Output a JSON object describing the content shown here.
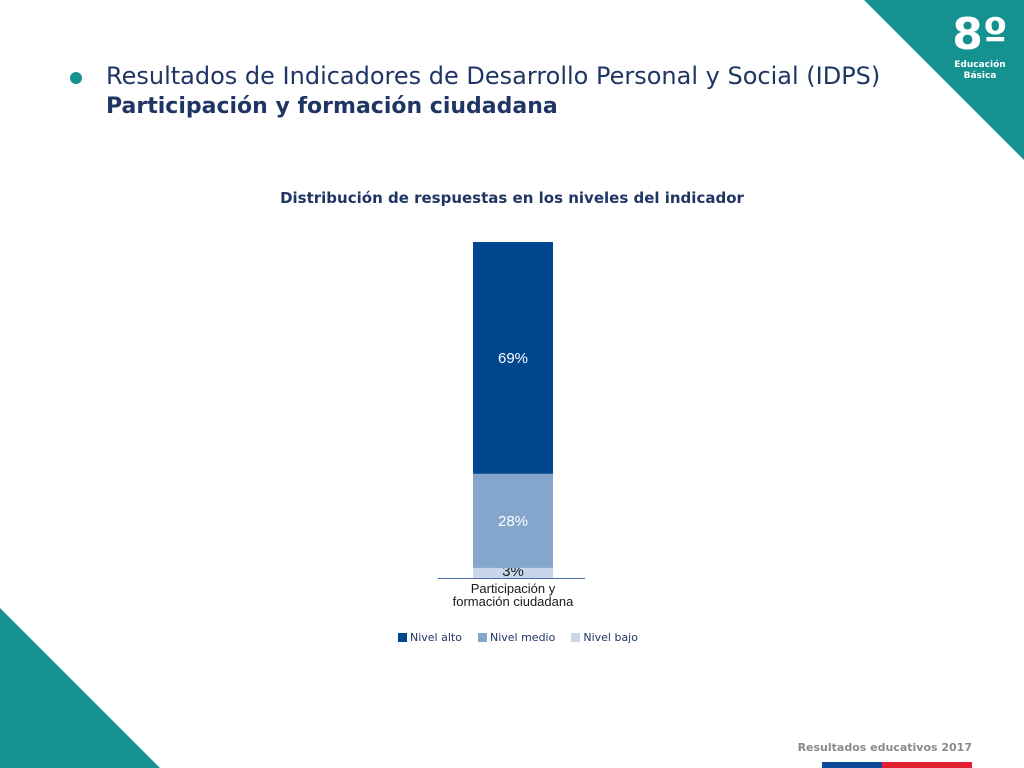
{
  "header": {
    "grade_number": "8º",
    "grade_label_1": "Educación",
    "grade_label_2": "Básica",
    "title_line1": "Resultados de Indicadores de Desarrollo Personal y Social (IDPS)",
    "title_line2": "Participación y formación ciudadana"
  },
  "colors": {
    "teal": "#15928f",
    "navy": "#1f3664",
    "nivel_alto": "#00478f",
    "nivel_medio": "#84a6cc",
    "nivel_bajo": "#c8d6e9",
    "footer_blue": "#0d4a9a",
    "footer_red": "#e2202f"
  },
  "chart_data": {
    "type": "bar",
    "stacked": true,
    "title": "Distribución de respuestas en los niveles del indicador",
    "categories": [
      "Participación y formación ciudadana"
    ],
    "series": [
      {
        "name": "Nivel alto",
        "values": [
          69
        ],
        "label": "69%",
        "color": "#00478f"
      },
      {
        "name": "Nivel medio",
        "values": [
          28
        ],
        "label": "28%",
        "color": "#84a6cc"
      },
      {
        "name": "Nivel bajo",
        "values": [
          3
        ],
        "label": "3%",
        "color": "#c8d6e9"
      }
    ],
    "category_label_lines": [
      "Participación y",
      "formación ciudadana"
    ],
    "ylim": [
      0,
      100
    ],
    "grid": false,
    "legend_position": "bottom"
  },
  "footer": {
    "text": "Resultados educativos 2017"
  }
}
